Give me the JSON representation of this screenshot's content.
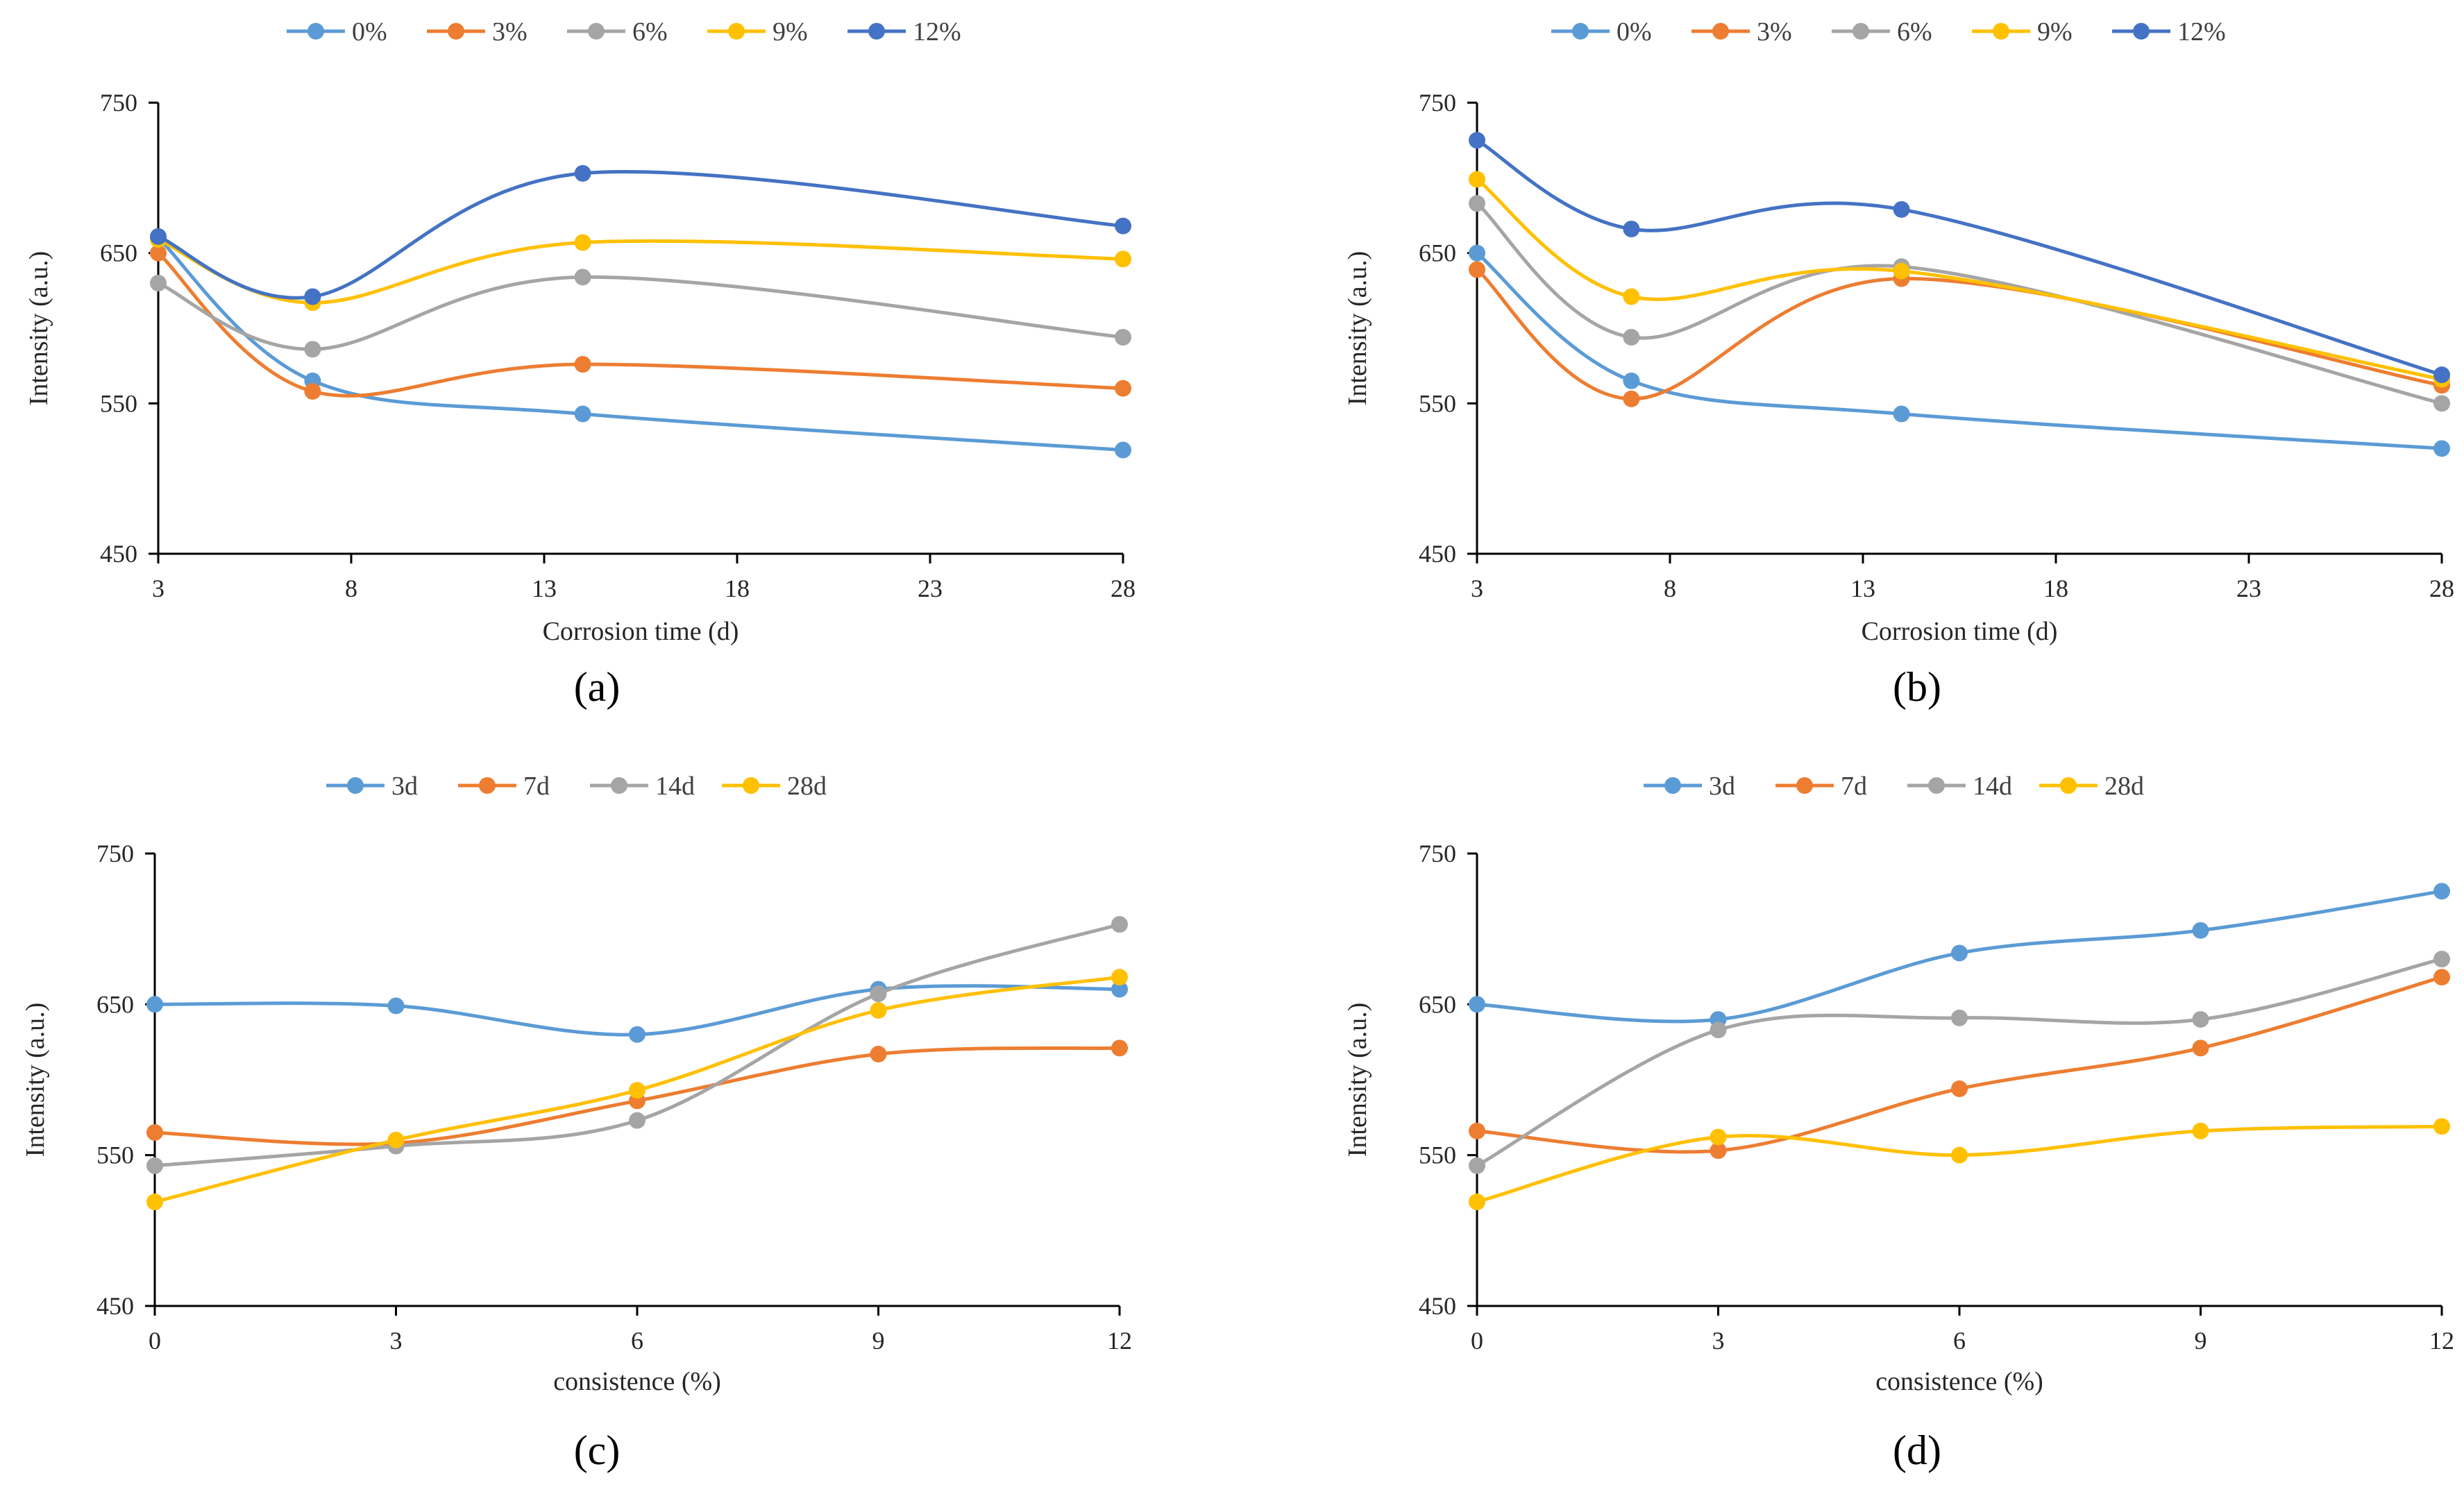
{
  "chart_data": [
    {
      "type": "line",
      "panel": "a",
      "panel_label": "(a)",
      "xlabel": "Corrosion time (d)",
      "ylabel": "Intensity (a.u.)",
      "x": [
        3,
        7,
        14,
        28
      ],
      "xticks": [
        3,
        8,
        13,
        18,
        23,
        28
      ],
      "xlim": [
        3,
        28
      ],
      "yticks": [
        450,
        550,
        650,
        750
      ],
      "ylim": [
        450,
        750
      ],
      "series": [
        {
          "name": "0%",
          "color": "#5B9BD5",
          "values": [
            660,
            565,
            543,
            519
          ]
        },
        {
          "name": "3%",
          "color": "#ED7D31",
          "values": [
            650,
            558,
            576,
            560
          ]
        },
        {
          "name": "6%",
          "color": "#A5A5A5",
          "values": [
            630,
            586,
            634,
            594
          ]
        },
        {
          "name": "9%",
          "color": "#FFC000",
          "values": [
            659,
            617,
            657,
            646
          ]
        },
        {
          "name": "12%",
          "color": "#4472C4",
          "values": [
            661,
            621,
            703,
            668
          ]
        }
      ]
    },
    {
      "type": "line",
      "panel": "b",
      "panel_label": "(b)",
      "xlabel": "Corrosion time (d)",
      "ylabel": "Intensity (a.u.)",
      "x": [
        3,
        7,
        14,
        28
      ],
      "xticks": [
        3,
        8,
        13,
        18,
        23,
        28
      ],
      "xlim": [
        3,
        28
      ],
      "yticks": [
        450,
        550,
        650,
        750
      ],
      "ylim": [
        450,
        750
      ],
      "series": [
        {
          "name": "0%",
          "color": "#5B9BD5",
          "values": [
            650,
            565,
            543,
            520
          ]
        },
        {
          "name": "3%",
          "color": "#ED7D31",
          "values": [
            639,
            553,
            633,
            562
          ]
        },
        {
          "name": "6%",
          "color": "#A5A5A5",
          "values": [
            683,
            594,
            641,
            550
          ]
        },
        {
          "name": "9%",
          "color": "#FFC000",
          "values": [
            699,
            621,
            638,
            566
          ]
        },
        {
          "name": "12%",
          "color": "#4472C4",
          "values": [
            725,
            666,
            679,
            569
          ]
        }
      ]
    },
    {
      "type": "line",
      "panel": "c",
      "panel_label": "(c)",
      "xlabel": "consistence (%)",
      "ylabel": "Intensity (a.u.)",
      "x": [
        0,
        3,
        6,
        9,
        12
      ],
      "xticks": [
        0,
        3,
        6,
        9,
        12
      ],
      "xlim": [
        0,
        12
      ],
      "yticks": [
        450,
        550,
        650,
        750
      ],
      "ylim": [
        450,
        750
      ],
      "series": [
        {
          "name": "3d",
          "color": "#5B9BD5",
          "values": [
            650,
            649,
            630,
            660,
            660
          ]
        },
        {
          "name": "7d",
          "color": "#ED7D31",
          "values": [
            565,
            558,
            586,
            617,
            621
          ]
        },
        {
          "name": "14d",
          "color": "#A5A5A5",
          "values": [
            543,
            556,
            573,
            657,
            703
          ]
        },
        {
          "name": "28d",
          "color": "#FFC000",
          "values": [
            519,
            560,
            593,
            646,
            668
          ]
        }
      ]
    },
    {
      "type": "line",
      "panel": "d",
      "panel_label": "(d)",
      "xlabel": "consistence (%)",
      "ylabel": "Intensity (a.u.)",
      "x": [
        0,
        3,
        6,
        9,
        12
      ],
      "xticks": [
        0,
        3,
        6,
        9,
        12
      ],
      "xlim": [
        0,
        12
      ],
      "yticks": [
        450,
        550,
        650,
        750
      ],
      "ylim": [
        450,
        750
      ],
      "series": [
        {
          "name": "3d",
          "color": "#5B9BD5",
          "values": [
            650,
            640,
            684,
            699,
            725
          ]
        },
        {
          "name": "7d",
          "color": "#ED7D31",
          "values": [
            566,
            553,
            594,
            621,
            668
          ]
        },
        {
          "name": "14d",
          "color": "#A5A5A5",
          "values": [
            543,
            633,
            641,
            640,
            680
          ]
        },
        {
          "name": "28d",
          "color": "#FFC000",
          "values": [
            519,
            562,
            550,
            566,
            569
          ]
        }
      ]
    }
  ]
}
